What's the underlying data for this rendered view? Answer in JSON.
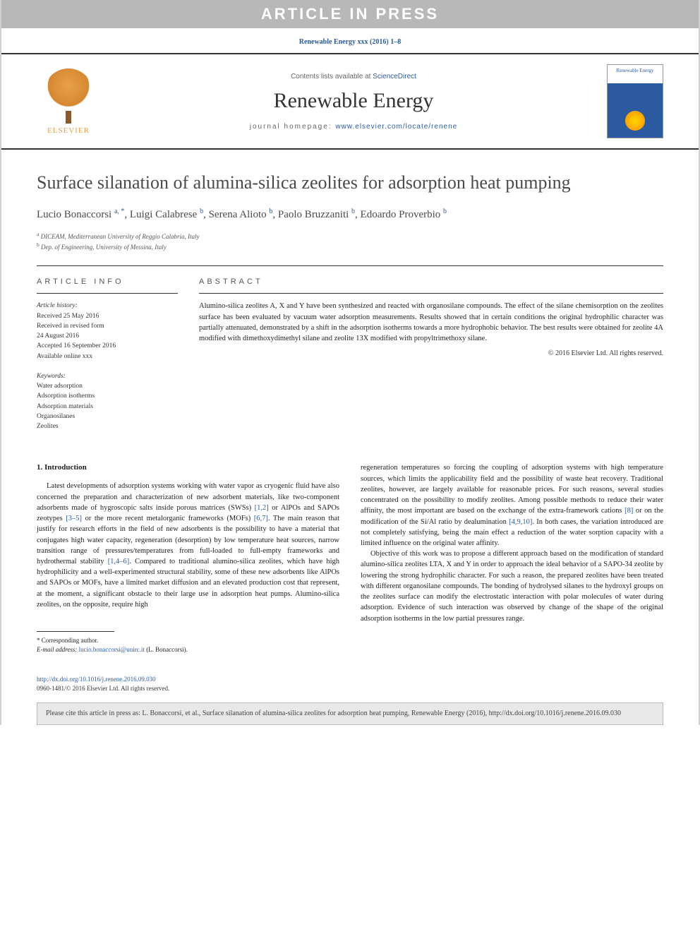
{
  "banner": {
    "in_press": "ARTICLE IN PRESS",
    "journal_ref": "Renewable Energy xxx (2016) 1–8",
    "contents_prefix": "Contents lists available at ",
    "contents_link": "ScienceDirect",
    "journal_name": "Renewable Energy",
    "homepage_prefix": "journal homepage: ",
    "homepage_link": "www.elsevier.com/locate/renene",
    "elsevier_label": "ELSEVIER",
    "cover_title": "Renewable Energy"
  },
  "article": {
    "title": "Surface silanation of alumina-silica zeolites for adsorption heat pumping",
    "authors_html": "Lucio Bonaccorsi <sup>a, *</sup>, Luigi Calabrese <sup>b</sup>, Serena Alioto <sup>b</sup>, Paolo Bruzzaniti <sup>b</sup>, Edoardo Proverbio <sup>b</sup>",
    "affiliations": [
      {
        "sup": "a",
        "text": "DICEAM, Mediterranean University of Reggio Calabria, Italy"
      },
      {
        "sup": "b",
        "text": "Dep. of Engineering, University of Messina, Italy"
      }
    ]
  },
  "info": {
    "heading": "ARTICLE INFO",
    "history_label": "Article history:",
    "history_lines": [
      "Received 25 May 2016",
      "Received in revised form",
      "24 August 2016",
      "Accepted 16 September 2016",
      "Available online xxx"
    ],
    "keywords_label": "Keywords:",
    "keywords": [
      "Water adsorption",
      "Adsorption isotherms",
      "Adsorption materials",
      "Organosilanes",
      "Zeolites"
    ]
  },
  "abstract": {
    "heading": "ABSTRACT",
    "text": "Alumino-silica zeolites A, X and Y have been synthesized and reacted with organosilane compounds. The effect of the silane chemisorption on the zeolites surface has been evaluated by vacuum water adsorption measurements. Results showed that in certain conditions the original hydrophilic character was partially attenuated, demonstrated by a shift in the adsorption isotherms towards a more hydrophobic behavior. The best results were obtained for zeolite 4A modified with dimethoxydimethyl silane and zeolite 13X modified with propyltrimethoxy silane.",
    "copyright": "© 2016 Elsevier Ltd. All rights reserved."
  },
  "body": {
    "section_heading": "1. Introduction",
    "col1_p1_pre": "Latest developments of adsorption systems working with water vapor as cryogenic fluid have also concerned the preparation and characterization of new adsorbent materials, like two-component adsorbents made of hygroscopic salts inside porous matrices (SWSs) ",
    "col1_cite1": "[1,2]",
    "col1_p1_mid1": " or AlPOs and SAPOs zeotypes ",
    "col1_cite2": "[3–5]",
    "col1_p1_mid2": " or the more recent metalorganic frameworks (MOFs) ",
    "col1_cite3": "[6,7]",
    "col1_p1_mid3": ". The main reason that justify for research efforts in the field of new adsorbents is the possibility to have a material that conjugates high water capacity, regeneration (desorption) by low temperature heat sources, narrow transition range of pressures/temperatures from full-loaded to full-empty frameworks and hydrothermal stability ",
    "col1_cite4": "[1,4–6]",
    "col1_p1_post": ". Compared to traditional alumino-silica zeolites, which have high hydrophilicity and a well-experimented structural stability, some of these new adsorbents like AlPOs and SAPOs or MOFs, have a limited market diffusion and an elevated production cost that represent, at the moment, a significant obstacle to their large use in adsorption heat pumps. Alumino-silica zeolites, on the opposite, require high",
    "col2_p1_pre": "regeneration temperatures so forcing the coupling of adsorption systems with high temperature sources, which limits the applicability field and the possibility of waste heat recovery. Traditional zeolites, however, are largely available for reasonable prices. For such reasons, several studies concentrated on the possibility to modify zeolites. Among possible methods to reduce their water affinity, the most important are based on the exchange of the extra-framework cations ",
    "col2_cite1": "[8]",
    "col2_p1_mid": " or on the modification of the Si/Al ratio by dealumination ",
    "col2_cite2": "[4,9,10]",
    "col2_p1_post": ". In both cases, the variation introduced are not completely satisfying, being the main effect a reduction of the water sorption capacity with a limited influence on the original water affinity.",
    "col2_p2": "Objective of this work was to propose a different approach based on the modification of standard alumino-silica zeolites LTA, X and Y in order to approach the ideal behavior of a SAPO-34 zeolite by lowering the strong hydrophilic character. For such a reason, the prepared zeolites have been treated with different organosilane compounds. The bonding of hydrolysed silanes to the hydroxyl groups on the zeolites surface can modify the electrostatic interaction with polar molecules of water during adsorption. Evidence of such interaction was observed by change of the shape of the original adsorption isotherms in the low partial pressures range."
  },
  "footnote": {
    "corr_label": "* Corresponding author.",
    "email_label": "E-mail address: ",
    "email": "lucio.bonaccorsi@unirc.it",
    "email_suffix": " (L. Bonaccorsi)."
  },
  "doi": {
    "url": "http://dx.doi.org/10.1016/j.renene.2016.09.030",
    "issn_line": "0960-1481/© 2016 Elsevier Ltd. All rights reserved."
  },
  "citebox": {
    "text": "Please cite this article in press as: L. Bonaccorsi, et al., Surface silanation of alumina-silica zeolites for adsorption heat pumping, Renewable Energy (2016), http://dx.doi.org/10.1016/j.renene.2016.09.030"
  },
  "colors": {
    "link": "#2c5aa0",
    "banner_gray": "#b8b8b8",
    "text": "#333333"
  }
}
